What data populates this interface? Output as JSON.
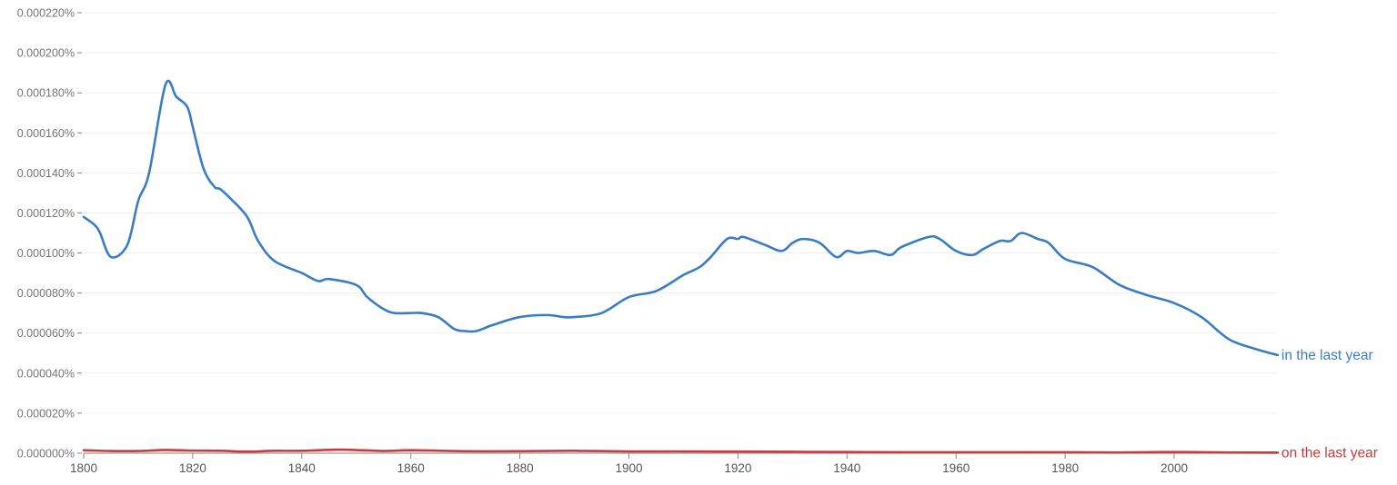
{
  "chart_data": {
    "type": "line",
    "title": "",
    "xlabel": "",
    "ylabel": "",
    "xlim": [
      1800,
      2019
    ],
    "ylim": [
      0,
      0.00022
    ],
    "y_tick_labels": [
      "0.000000%",
      "0.000020%",
      "0.000040%",
      "0.000060%",
      "0.000080%",
      "0.000100%",
      "0.000120%",
      "0.000140%",
      "0.000160%",
      "0.000180%",
      "0.000200%",
      "0.000220%"
    ],
    "x_tick_labels": [
      "1800",
      "1820",
      "1840",
      "1860",
      "1880",
      "1900",
      "1920",
      "1940",
      "1960",
      "1980",
      "2000"
    ],
    "grid": true,
    "legend_position": "inline-right",
    "series": [
      {
        "name": "in the last year",
        "color": "#3b7dc4",
        "x": [
          1800,
          1802,
          1803,
          1805,
          1808,
          1810,
          1812,
          1815,
          1817,
          1819,
          1820,
          1822,
          1824,
          1825,
          1827,
          1830,
          1832,
          1835,
          1840,
          1843,
          1845,
          1850,
          1852,
          1855,
          1857,
          1860,
          1862,
          1865,
          1868,
          1870,
          1872,
          1875,
          1880,
          1885,
          1888,
          1890,
          1895,
          1900,
          1905,
          1910,
          1913,
          1915,
          1918,
          1920,
          1921,
          1925,
          1928,
          1930,
          1932,
          1935,
          1938,
          1940,
          1942,
          1945,
          1948,
          1950,
          1955,
          1957,
          1960,
          1963,
          1965,
          1968,
          1970,
          1972,
          1975,
          1977,
          1980,
          1985,
          1990,
          1995,
          2000,
          2005,
          2010,
          2015,
          2019
        ],
        "values": [
          0.000118,
          0.000114,
          0.00011,
          9.8e-05,
          0.000104,
          0.000126,
          0.00014,
          0.000184,
          0.000178,
          0.000173,
          0.000163,
          0.000142,
          0.000133,
          0.000132,
          0.000127,
          0.000118,
          0.000106,
          9.6e-05,
          9e-05,
          8.6e-05,
          8.7e-05,
          8.4e-05,
          7.8e-05,
          7.2e-05,
          7e-05,
          7e-05,
          7e-05,
          6.8e-05,
          6.2e-05,
          6.1e-05,
          6.1e-05,
          6.4e-05,
          6.8e-05,
          6.9e-05,
          6.8e-05,
          6.8e-05,
          7e-05,
          7.8e-05,
          8.1e-05,
          8.9e-05,
          9.3e-05,
          9.8e-05,
          0.000107,
          0.000107,
          0.000108,
          0.000104,
          0.000101,
          0.000105,
          0.000107,
          0.000105,
          9.8e-05,
          0.000101,
          0.0001,
          0.000101,
          9.9e-05,
          0.000103,
          0.000108,
          0.000107,
          0.000101,
          9.9e-05,
          0.000102,
          0.000106,
          0.000106,
          0.00011,
          0.000107,
          0.000105,
          9.7e-05,
          9.3e-05,
          8.4e-05,
          7.9e-05,
          7.5e-05,
          6.8e-05,
          5.7e-05,
          5.2e-05,
          4.9e-05
        ]
      },
      {
        "name": "on the last year",
        "color": "#cc3b3b",
        "x": [
          1800,
          1805,
          1810,
          1815,
          1820,
          1825,
          1830,
          1835,
          1840,
          1847,
          1855,
          1860,
          1870,
          1880,
          1890,
          1900,
          1910,
          1920,
          1930,
          1940,
          1950,
          1960,
          1970,
          1980,
          1990,
          2000,
          2010,
          2019
        ],
        "values": [
          1.5e-06,
          1.1e-06,
          1.1e-06,
          1.6e-06,
          1.3e-06,
          1.2e-06,
          8e-07,
          1.2e-06,
          1.2e-06,
          1.8e-06,
          1.1e-06,
          1.5e-06,
          1e-06,
          1e-06,
          1.2e-06,
          9e-07,
          9e-07,
          8e-07,
          7e-07,
          6e-07,
          5e-07,
          5e-07,
          5e-07,
          5e-07,
          4e-07,
          6e-07,
          4e-07,
          3e-07
        ]
      }
    ]
  }
}
